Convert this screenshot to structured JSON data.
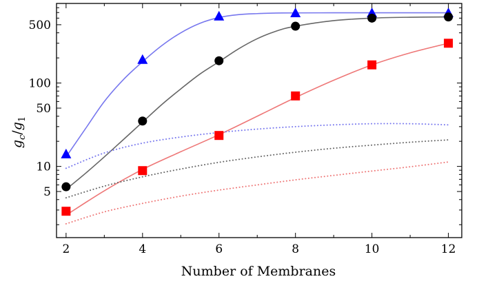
{
  "chart_data": {
    "type": "line",
    "xlabel": "Number of Membranes",
    "ylabel_main": "g",
    "ylabel_main_sub": "c",
    "ylabel_sep": "/",
    "ylabel_den": "g",
    "ylabel_den_sub": "1",
    "y_scale": "log",
    "xlim": [
      1.75,
      12.35
    ],
    "ylim": [
      1.4,
      900
    ],
    "x_ticks": [
      2,
      4,
      6,
      8,
      10,
      12
    ],
    "x_tick_labels": [
      "2",
      "4",
      "6",
      "8",
      "10",
      "12"
    ],
    "y_ticks": [
      5,
      10,
      50,
      100,
      500
    ],
    "y_tick_labels": [
      "5",
      "10",
      "50",
      "100",
      "500"
    ],
    "grid": false,
    "series": [
      {
        "marker": "triangle",
        "color": "#0000ff",
        "line_color": "#7777ee",
        "line_style": "solid",
        "x": [
          2,
          4,
          6,
          8,
          10,
          12
        ],
        "y": [
          14,
          190,
          630,
          690,
          690,
          690
        ],
        "curve_x": [
          2,
          2.5,
          3,
          3.5,
          4,
          4.5,
          5,
          5.5,
          6,
          6.5,
          7,
          7.5,
          8,
          9,
          10,
          11,
          12
        ],
        "curve_y": [
          13,
          28,
          60,
          110,
          180,
          280,
          400,
          520,
          610,
          660,
          680,
          690,
          693,
          695,
          695,
          695,
          695
        ]
      },
      {
        "marker": "circle",
        "color": "#000000",
        "line_color": "#666666",
        "line_style": "solid",
        "x": [
          2,
          4,
          6,
          8,
          10,
          12
        ],
        "y": [
          5.7,
          35,
          185,
          480,
          600,
          620
        ],
        "curve_x": [
          2,
          2.5,
          3,
          3.5,
          4,
          4.5,
          5,
          5.5,
          6,
          6.5,
          7,
          7.5,
          8,
          9,
          10,
          11,
          12
        ],
        "curve_y": [
          5.3,
          8.2,
          13,
          21,
          34,
          55,
          85,
          128,
          180,
          255,
          340,
          420,
          480,
          560,
          600,
          615,
          620
        ]
      },
      {
        "marker": "square",
        "color": "#ff0000",
        "line_color": "#ee7777",
        "line_style": "solid",
        "x": [
          2,
          4,
          6,
          8,
          10,
          12
        ],
        "y": [
          2.9,
          8.9,
          23.5,
          70,
          165,
          300
        ],
        "curve_x": [
          2,
          3,
          4,
          5,
          6,
          7,
          8,
          9,
          10,
          11,
          12
        ],
        "curve_y": [
          2.6,
          5.1,
          9.2,
          15,
          24,
          40,
          67,
          108,
          165,
          230,
          300
        ]
      },
      {
        "marker": "none",
        "color": "#7777ee",
        "line_style": "dotted",
        "curve_x": [
          2,
          3,
          4,
          5,
          6,
          7,
          8,
          9,
          10,
          11,
          12
        ],
        "curve_y": [
          9.5,
          14.5,
          19,
          22.5,
          25.5,
          28,
          30,
          31.5,
          32.5,
          32.5,
          31.5
        ]
      },
      {
        "marker": "none",
        "color": "#666666",
        "line_style": "dotted",
        "curve_x": [
          2,
          3,
          4,
          5,
          6,
          7,
          8,
          9,
          10,
          11,
          12
        ],
        "curve_y": [
          4.2,
          5.8,
          7.5,
          9.3,
          11.2,
          13,
          14.8,
          16.5,
          18,
          19.5,
          20.8
        ]
      },
      {
        "marker": "none",
        "color": "#ee7777",
        "line_style": "dotted",
        "curve_x": [
          2,
          3,
          4,
          5,
          6,
          7,
          8,
          9,
          10,
          11,
          12
        ],
        "curve_y": [
          2.05,
          2.85,
          3.6,
          4.4,
          5.2,
          6.0,
          6.9,
          7.8,
          8.8,
          9.9,
          11.3
        ]
      }
    ]
  }
}
